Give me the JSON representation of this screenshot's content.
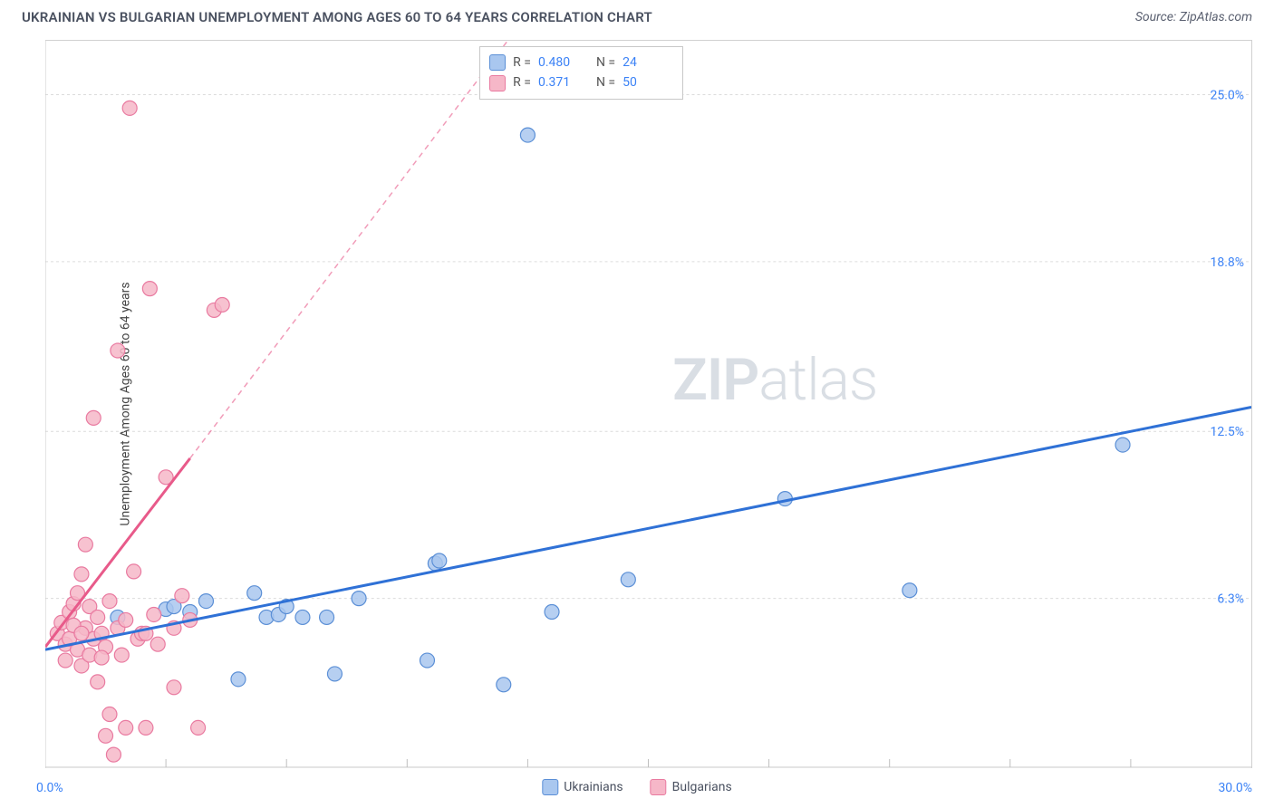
{
  "title": "UKRAINIAN VS BULGARIAN UNEMPLOYMENT AMONG AGES 60 TO 64 YEARS CORRELATION CHART",
  "source_prefix": "Source: ",
  "source_name": "ZipAtlas.com",
  "y_axis_label": "Unemployment Among Ages 60 to 64 years",
  "watermark_bold": "ZIP",
  "watermark_rest": "atlas",
  "chart": {
    "type": "scatter",
    "background_color": "#ffffff",
    "grid_color": "#dcdcdc",
    "axis_color": "#c8c8c8",
    "tick_color": "#bfbfbf",
    "x_range": [
      0,
      30
    ],
    "y_range": [
      0,
      27
    ],
    "x_origin_label": "0.0%",
    "x_end_label": "30.0%",
    "x_ticks": [
      3,
      6,
      9,
      12,
      15,
      18,
      21,
      24,
      27
    ],
    "y_gridlines": [
      {
        "value": 6.3,
        "label": "6.3%"
      },
      {
        "value": 12.5,
        "label": "12.5%"
      },
      {
        "value": 18.8,
        "label": "18.8%"
      },
      {
        "value": 25.0,
        "label": "25.0%"
      }
    ],
    "y_label_color": "#3b82f6",
    "y_label_fontsize": 14,
    "series": [
      {
        "name": "Ukrainians",
        "fill_color": "#a9c7ef",
        "stroke_color": "#5b8fd6",
        "marker_radius": 8,
        "marker_opacity": 0.85,
        "trend_line": {
          "x1": 0,
          "y1": 4.4,
          "x2": 30,
          "y2": 13.4,
          "color": "#2f71d6",
          "width": 3,
          "dash_after_x": 30
        },
        "stats": {
          "R_label": "R =",
          "R": "0.480",
          "N_label": "N =",
          "N": "24"
        },
        "points": [
          [
            3.0,
            5.9
          ],
          [
            3.6,
            5.8
          ],
          [
            4.0,
            6.2
          ],
          [
            4.8,
            3.3
          ],
          [
            5.2,
            6.5
          ],
          [
            5.5,
            5.6
          ],
          [
            5.8,
            5.7
          ],
          [
            6.4,
            5.6
          ],
          [
            7.0,
            5.6
          ],
          [
            7.2,
            3.5
          ],
          [
            7.8,
            6.3
          ],
          [
            9.5,
            4.0
          ],
          [
            9.7,
            7.6
          ],
          [
            9.8,
            7.7
          ],
          [
            11.4,
            3.1
          ],
          [
            12.6,
            5.8
          ],
          [
            12.0,
            23.5
          ],
          [
            14.5,
            7.0
          ],
          [
            18.4,
            10.0
          ],
          [
            21.5,
            6.6
          ],
          [
            26.8,
            12.0
          ],
          [
            1.8,
            5.6
          ],
          [
            3.2,
            6.0
          ],
          [
            6.0,
            6.0
          ]
        ]
      },
      {
        "name": "Bulgarians",
        "fill_color": "#f6b7c8",
        "stroke_color": "#e97aa0",
        "marker_radius": 8,
        "marker_opacity": 0.85,
        "trend_line": {
          "x1": 0,
          "y1": 4.5,
          "x2": 3.6,
          "y2": 11.5,
          "color": "#e85a8a",
          "width": 3,
          "dash_after_x": 3.6,
          "dash_x2": 11.5,
          "dash_y2": 27
        },
        "stats": {
          "R_label": "R =",
          "R": "0.371",
          "N_label": "N =",
          "N": "50"
        },
        "points": [
          [
            0.3,
            5.0
          ],
          [
            0.4,
            5.4
          ],
          [
            0.5,
            4.6
          ],
          [
            0.6,
            5.8
          ],
          [
            0.7,
            6.1
          ],
          [
            0.8,
            4.4
          ],
          [
            0.8,
            6.5
          ],
          [
            0.9,
            7.2
          ],
          [
            0.9,
            3.8
          ],
          [
            1.0,
            5.2
          ],
          [
            1.0,
            8.3
          ],
          [
            1.1,
            4.2
          ],
          [
            1.1,
            6.0
          ],
          [
            1.2,
            4.8
          ],
          [
            1.2,
            13.0
          ],
          [
            1.3,
            5.6
          ],
          [
            1.3,
            3.2
          ],
          [
            1.4,
            5.0
          ],
          [
            1.5,
            4.5
          ],
          [
            1.5,
            1.2
          ],
          [
            1.6,
            2.0
          ],
          [
            1.6,
            6.2
          ],
          [
            1.7,
            0.5
          ],
          [
            1.8,
            5.2
          ],
          [
            1.8,
            15.5
          ],
          [
            1.9,
            4.2
          ],
          [
            2.0,
            5.5
          ],
          [
            2.0,
            1.5
          ],
          [
            2.2,
            7.3
          ],
          [
            2.3,
            4.8
          ],
          [
            2.4,
            5.0
          ],
          [
            2.5,
            1.5
          ],
          [
            2.6,
            17.8
          ],
          [
            2.7,
            5.7
          ],
          [
            2.8,
            4.6
          ],
          [
            2.1,
            24.5
          ],
          [
            3.0,
            10.8
          ],
          [
            3.2,
            5.2
          ],
          [
            3.2,
            3.0
          ],
          [
            3.4,
            6.4
          ],
          [
            3.6,
            5.5
          ],
          [
            3.8,
            1.5
          ],
          [
            4.2,
            17.0
          ],
          [
            4.4,
            17.2
          ],
          [
            0.5,
            4.0
          ],
          [
            0.6,
            4.8
          ],
          [
            0.7,
            5.3
          ],
          [
            2.5,
            5.0
          ],
          [
            1.4,
            4.1
          ],
          [
            0.9,
            5.0
          ]
        ]
      }
    ],
    "top_legend_border": "#c8c8c8",
    "bottom_legend": [
      {
        "label": "Ukrainians",
        "fill": "#a9c7ef",
        "stroke": "#5b8fd6"
      },
      {
        "label": "Bulgarians",
        "fill": "#f6b7c8",
        "stroke": "#e97aa0"
      }
    ]
  }
}
